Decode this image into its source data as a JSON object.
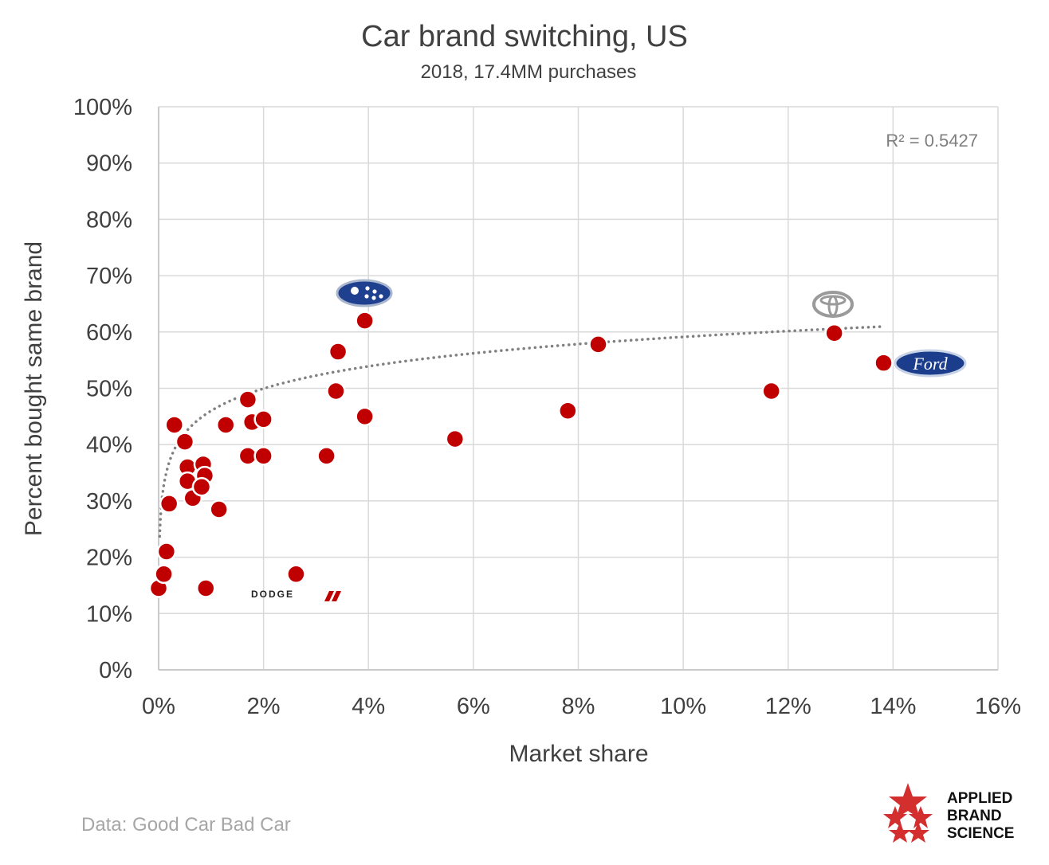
{
  "chart_data": {
    "type": "scatter",
    "title": "Car brand switching, US",
    "subtitle": "2018, 17.4MM purchases",
    "xlabel": "Market share",
    "ylabel": "Percent bought same brand",
    "xlim": [
      0,
      16
    ],
    "ylim": [
      0,
      100
    ],
    "x_ticks": [
      "0%",
      "2%",
      "4%",
      "6%",
      "8%",
      "10%",
      "12%",
      "14%",
      "16%"
    ],
    "y_ticks": [
      "0%",
      "10%",
      "20%",
      "30%",
      "40%",
      "50%",
      "60%",
      "70%",
      "80%",
      "90%",
      "100%"
    ],
    "grid": true,
    "series": [
      {
        "name": "Brands",
        "color": "#c00000",
        "points": [
          {
            "x": 0.0,
            "y": 14.5
          },
          {
            "x": 0.1,
            "y": 17.0
          },
          {
            "x": 0.15,
            "y": 21.0
          },
          {
            "x": 0.2,
            "y": 29.5
          },
          {
            "x": 0.3,
            "y": 43.5
          },
          {
            "x": 0.5,
            "y": 40.5
          },
          {
            "x": 0.55,
            "y": 36.0
          },
          {
            "x": 0.55,
            "y": 33.5
          },
          {
            "x": 0.65,
            "y": 30.5
          },
          {
            "x": 0.85,
            "y": 36.5
          },
          {
            "x": 0.88,
            "y": 34.5
          },
          {
            "x": 0.82,
            "y": 32.5
          },
          {
            "x": 0.9,
            "y": 14.5
          },
          {
            "x": 1.15,
            "y": 28.5
          },
          {
            "x": 1.28,
            "y": 43.5
          },
          {
            "x": 1.7,
            "y": 48.0
          },
          {
            "x": 1.7,
            "y": 38.0
          },
          {
            "x": 1.78,
            "y": 44.0
          },
          {
            "x": 2.0,
            "y": 44.5
          },
          {
            "x": 2.0,
            "y": 38.0
          },
          {
            "x": 2.62,
            "y": 17.0
          },
          {
            "x": 3.2,
            "y": 38.0
          },
          {
            "x": 3.38,
            "y": 49.5
          },
          {
            "x": 3.42,
            "y": 56.5
          },
          {
            "x": 3.93,
            "y": 62.0
          },
          {
            "x": 3.93,
            "y": 45.0
          },
          {
            "x": 5.65,
            "y": 41.0
          },
          {
            "x": 7.8,
            "y": 46.0
          },
          {
            "x": 8.38,
            "y": 57.8
          },
          {
            "x": 11.68,
            "y": 49.5
          },
          {
            "x": 12.88,
            "y": 59.8
          },
          {
            "x": 13.82,
            "y": 54.5
          }
        ]
      }
    ],
    "trendline": {
      "type": "logarithmic",
      "style": "dotted",
      "color": "#808080",
      "x_range": [
        0.02,
        13.8
      ],
      "a": 46.0,
      "b": 5.7,
      "r_squared_label": "R² = 0.5427"
    },
    "annotations": {
      "subaru": "subaru-logo",
      "toyota": "toyota-logo",
      "ford": {
        "icon": "ford-logo",
        "text": "Ford"
      },
      "dodge": {
        "icon": "dodge-logo",
        "text": "DODGE"
      }
    }
  },
  "source": "Data: Good Car Bad Car",
  "brand": {
    "line1": "APPLIED",
    "line2": "BRAND",
    "line3": "SCIENCE",
    "star_color": "#d32f2f"
  }
}
